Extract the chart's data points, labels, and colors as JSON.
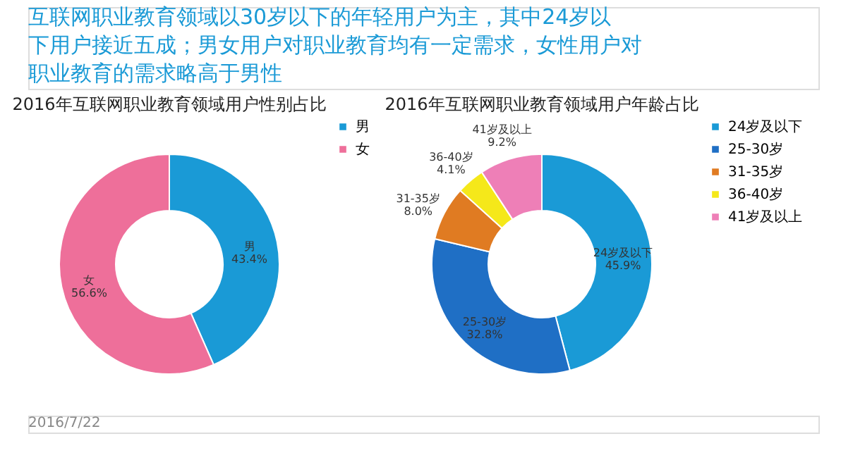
{
  "chart_data": [
    {
      "type": "donut",
      "title": "2016年互联网职业教育领域用户性别占比",
      "categories": [
        "男",
        "女"
      ],
      "values": [
        43.4,
        56.6
      ],
      "value_labels": [
        "43.4%",
        "56.6%"
      ],
      "colors": [
        "#1a9ad6",
        "#ee6f9a"
      ],
      "legend": "right",
      "annotations": [
        "互联网职业教育领域以30岁以下的年轻用户为主，其中24岁以下用户接近五成；男女用户对职业教育均有一定需求，女性用户对职业教育的需求略高于男性",
        "2016/7/22"
      ]
    },
    {
      "type": "donut",
      "title": "2016年互联网职业教育领域用户年龄占比",
      "categories": [
        "24岁及以下",
        "25-30岁",
        "31-35岁",
        "36-40岁",
        "41岁及以上"
      ],
      "values": [
        45.9,
        32.8,
        8.0,
        4.1,
        9.2
      ],
      "value_labels": [
        "45.9%",
        "32.8%",
        "8.0%",
        "4.1%",
        "9.2%"
      ],
      "colors": [
        "#1a9ad6",
        "#1f6fc5",
        "#e07b22",
        "#f5e81a",
        "#ee7fb7"
      ],
      "legend": "right"
    }
  ]
}
